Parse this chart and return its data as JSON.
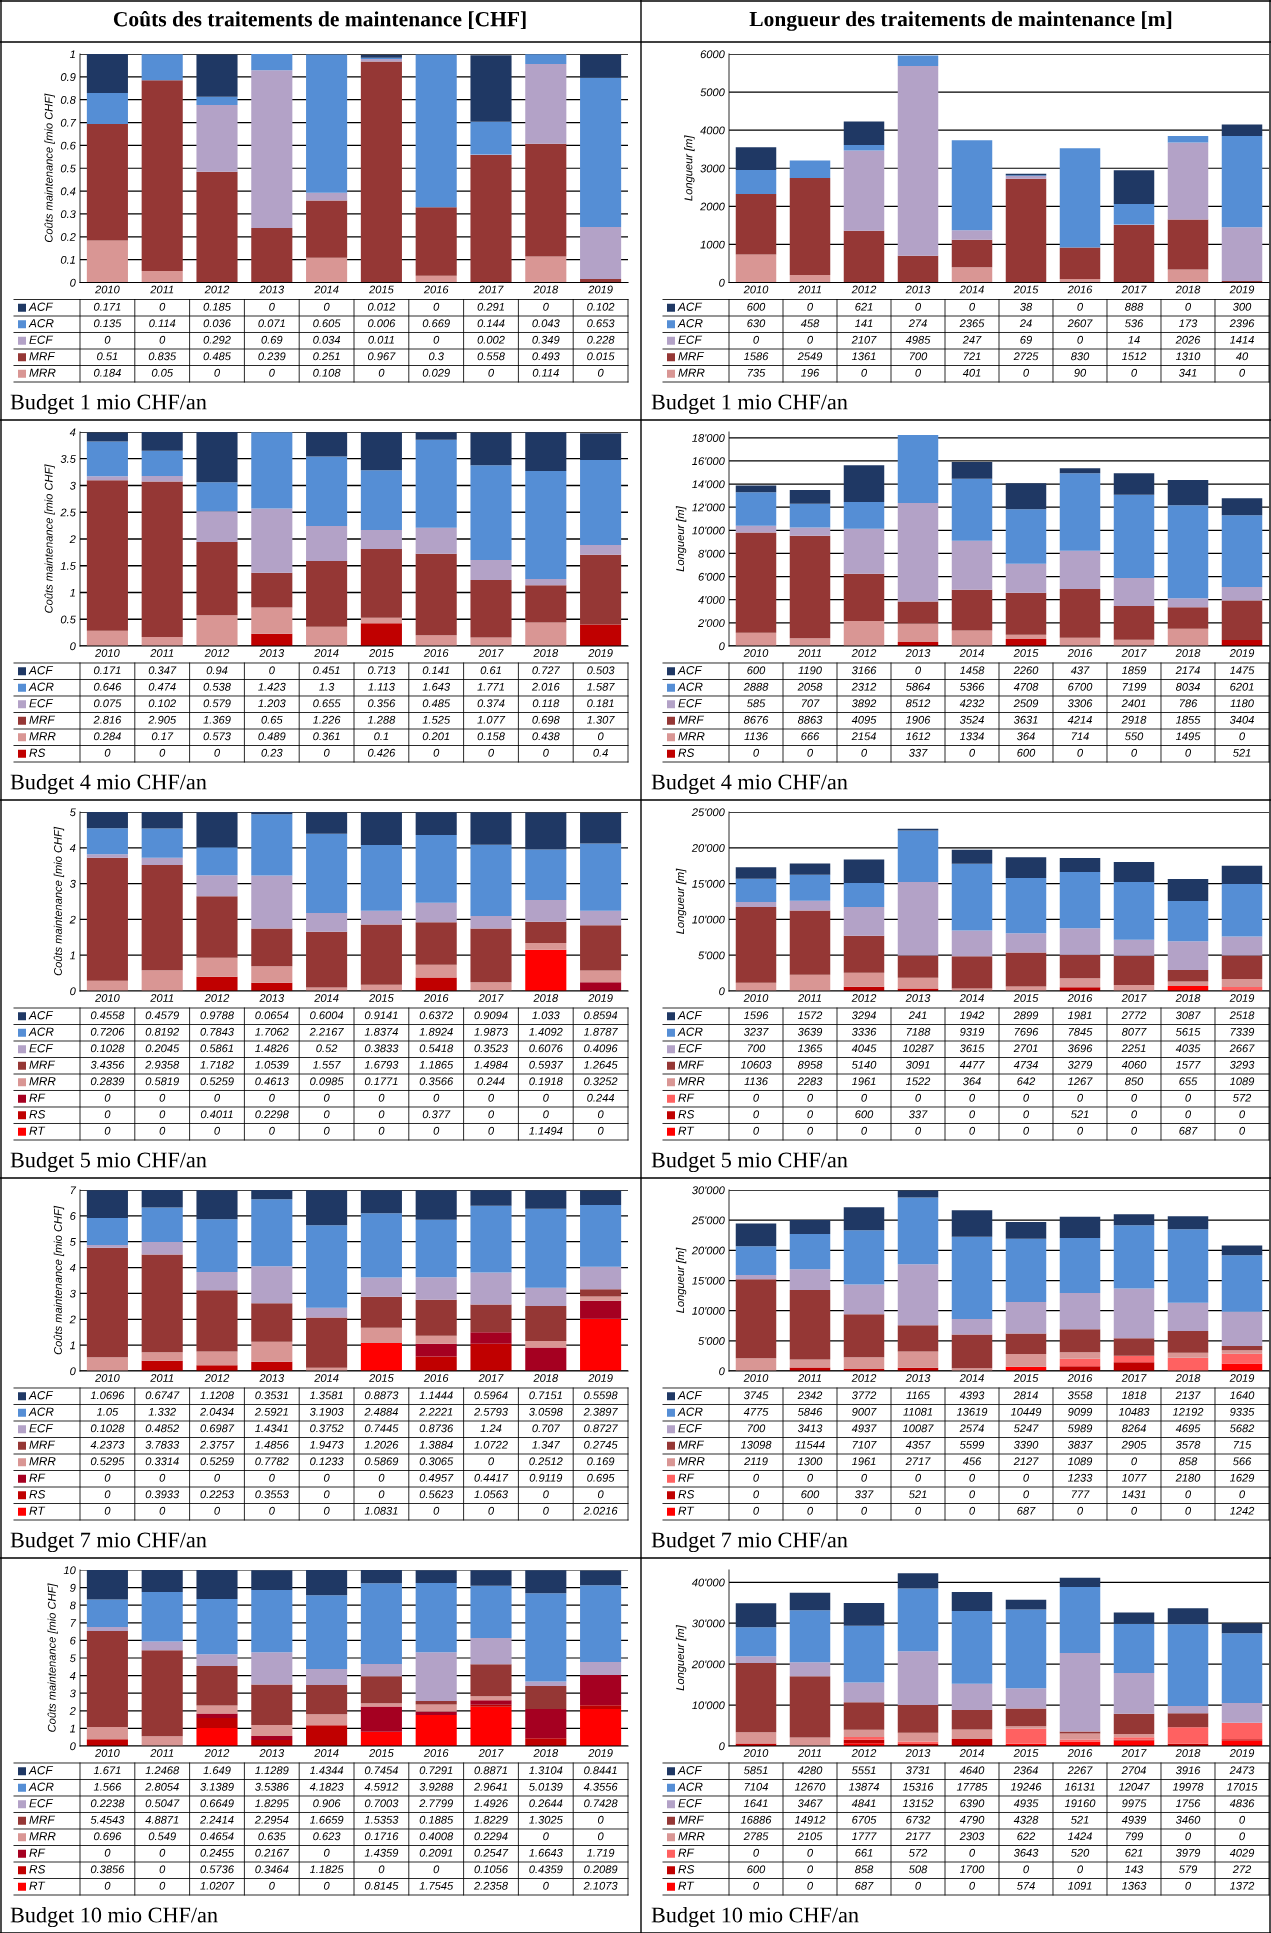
{
  "chart_data": [
    {
      "type": "bar",
      "stacked": true,
      "title": "Coûts des traitements de maintenance [CHF]",
      "ylabel": "Coûts maintenance [mio CHF]",
      "categories": [
        "2010",
        "2011",
        "2012",
        "2013",
        "2014",
        "2015",
        "2016",
        "2017",
        "2018",
        "2019"
      ],
      "ylim": [
        0,
        1
      ],
      "yticks": [
        0,
        0.1,
        0.2,
        0.3,
        0.4,
        0.5,
        0.6,
        0.7,
        0.8,
        0.9,
        1
      ],
      "grid": "y",
      "legend": "bottom",
      "data_labels": true,
      "annotations": [
        "Budget 1 mio CHF/an"
      ],
      "series": [
        {
          "name": "MRR",
          "color": "#d99694",
          "values": [
            0.184,
            0.05,
            0,
            0,
            0.108,
            0,
            0.029,
            0,
            0.114,
            0
          ]
        },
        {
          "name": "MRF",
          "color": "#953735",
          "values": [
            0.51,
            0.835,
            0.485,
            0.239,
            0.251,
            0.967,
            0.3,
            0.558,
            0.493,
            0.015
          ]
        },
        {
          "name": "ECF",
          "color": "#b3a2c7",
          "values": [
            0,
            0,
            0.292,
            0.69,
            0.034,
            0.011,
            0,
            0.002,
            0.349,
            0.228
          ]
        },
        {
          "name": "ACR",
          "color": "#558ed5",
          "values": [
            0.135,
            0.114,
            0.036,
            0.071,
            0.605,
            0.006,
            0.669,
            0.144,
            0.043,
            0.653
          ]
        },
        {
          "name": "ACF",
          "color": "#1f3864",
          "values": [
            0.171,
            0,
            0.185,
            0,
            0,
            0.012,
            0,
            0.291,
            0,
            0.102
          ]
        }
      ]
    },
    {
      "type": "bar",
      "stacked": true,
      "title": "Longueur des traitements de maintenance [m]",
      "ylabel": "Longueur [m]",
      "categories": [
        "2010",
        "2011",
        "2012",
        "2013",
        "2014",
        "2015",
        "2016",
        "2017",
        "2018",
        "2019"
      ],
      "ylim": [
        0,
        6000
      ],
      "yticks": [
        0,
        1000,
        2000,
        3000,
        4000,
        5000,
        6000
      ],
      "grid": "y",
      "legend": "bottom",
      "data_labels": true,
      "annotations": [
        "Budget 1 mio CHF/an"
      ],
      "series": [
        {
          "name": "MRR",
          "color": "#d99694",
          "values": [
            735,
            196,
            0,
            0,
            401,
            0,
            90,
            0,
            341,
            0
          ]
        },
        {
          "name": "MRF",
          "color": "#953735",
          "values": [
            1586,
            2549,
            1361,
            700,
            721,
            2725,
            830,
            1512,
            1310,
            40
          ]
        },
        {
          "name": "ECF",
          "color": "#b3a2c7",
          "values": [
            0,
            0,
            2107,
            4985,
            247,
            69,
            0,
            14,
            2026,
            1414
          ]
        },
        {
          "name": "ACR",
          "color": "#558ed5",
          "values": [
            630,
            458,
            141,
            274,
            2365,
            24,
            2607,
            536,
            173,
            2396
          ]
        },
        {
          "name": "ACF",
          "color": "#1f3864",
          "values": [
            600,
            0,
            621,
            0,
            0,
            38,
            0,
            888,
            0,
            300
          ]
        }
      ]
    },
    {
      "type": "bar",
      "stacked": true,
      "ylabel": "Coûts maintenance [mio CHF]",
      "categories": [
        "2010",
        "2011",
        "2012",
        "2013",
        "2014",
        "2015",
        "2016",
        "2017",
        "2018",
        "2019"
      ],
      "ylim": [
        0,
        4
      ],
      "yticks": [
        0,
        0.5,
        1,
        1.5,
        2,
        2.5,
        3,
        3.5,
        4
      ],
      "grid": "y",
      "legend": "bottom",
      "data_labels": true,
      "annotations": [
        "Budget 4 mio CHF/an"
      ],
      "series": [
        {
          "name": "RS",
          "color": "#c00000",
          "values": [
            0,
            0,
            0,
            0.23,
            0,
            0.426,
            0,
            0,
            0,
            0.4
          ]
        },
        {
          "name": "MRR",
          "color": "#d99694",
          "values": [
            0.284,
            0.17,
            0.573,
            0.489,
            0.361,
            0.1,
            0.201,
            0.158,
            0.438,
            0
          ]
        },
        {
          "name": "MRF",
          "color": "#953735",
          "values": [
            2.816,
            2.905,
            1.369,
            0.65,
            1.226,
            1.288,
            1.525,
            1.077,
            0.698,
            1.307
          ]
        },
        {
          "name": "ECF",
          "color": "#b3a2c7",
          "values": [
            0.075,
            0.102,
            0.579,
            1.203,
            0.655,
            0.356,
            0.485,
            0.374,
            0.118,
            0.181
          ]
        },
        {
          "name": "ACR",
          "color": "#558ed5",
          "values": [
            0.646,
            0.474,
            0.538,
            1.423,
            1.3,
            1.113,
            1.643,
            1.771,
            2.016,
            1.587
          ]
        },
        {
          "name": "ACF",
          "color": "#1f3864",
          "values": [
            0.171,
            0.347,
            0.94,
            0,
            0.451,
            0.713,
            0.141,
            0.61,
            0.727,
            0.503
          ]
        }
      ]
    },
    {
      "type": "bar",
      "stacked": true,
      "ylabel": "Longueur [m]",
      "categories": [
        "2010",
        "2011",
        "2012",
        "2013",
        "2014",
        "2015",
        "2016",
        "2017",
        "2018",
        "2019"
      ],
      "ylim": [
        0,
        18500
      ],
      "yticks": [
        0,
        {
          "value": 2000,
          "label": "2'000"
        },
        {
          "value": 4000,
          "label": "4'000"
        },
        {
          "value": 6000,
          "label": "6'000"
        },
        {
          "value": 8000,
          "label": "8'000"
        },
        {
          "value": 10000,
          "label": "10'000"
        },
        {
          "value": 12000,
          "label": "12'000"
        },
        {
          "value": 14000,
          "label": "14'000"
        },
        {
          "value": 16000,
          "label": "16'000"
        },
        {
          "value": 18000,
          "label": "18'000"
        }
      ],
      "grid": "y",
      "legend": "bottom",
      "data_labels": true,
      "annotations": [
        "Budget 4 mio CHF/an"
      ],
      "series": [
        {
          "name": "RS",
          "color": "#c00000",
          "values": [
            0,
            0,
            0,
            337,
            0,
            600,
            0,
            0,
            0,
            521
          ]
        },
        {
          "name": "MRR",
          "color": "#d99694",
          "values": [
            1136,
            666,
            2154,
            1612,
            1334,
            364,
            714,
            550,
            1495,
            0
          ]
        },
        {
          "name": "MRF",
          "color": "#953735",
          "values": [
            8676,
            8863,
            4095,
            1906,
            3524,
            3631,
            4214,
            2918,
            1855,
            3404
          ]
        },
        {
          "name": "ECF",
          "color": "#b3a2c7",
          "values": [
            585,
            707,
            3892,
            8512,
            4232,
            2509,
            3306,
            2401,
            786,
            1180
          ]
        },
        {
          "name": "ACR",
          "color": "#558ed5",
          "values": [
            2888,
            2058,
            2312,
            5864,
            5366,
            4708,
            6700,
            7199,
            8034,
            6201
          ]
        },
        {
          "name": "ACF",
          "color": "#1f3864",
          "values": [
            600,
            1190,
            3166,
            0,
            1458,
            2260,
            437,
            1859,
            2174,
            1475
          ]
        }
      ]
    },
    {
      "type": "bar",
      "stacked": true,
      "ylabel": "Coûts maintenance [mio CHF]",
      "categories": [
        "2010",
        "2011",
        "2012",
        "2013",
        "2014",
        "2015",
        "2016",
        "2017",
        "2018",
        "2019"
      ],
      "ylim": [
        0,
        5
      ],
      "yticks": [
        0,
        1,
        2,
        3,
        4,
        5
      ],
      "grid": "y",
      "legend": "bottom",
      "data_labels": true,
      "annotations": [
        "Budget 5 mio CHF/an"
      ],
      "series": [
        {
          "name": "RT",
          "color": "#ff0000",
          "values": [
            0,
            0,
            0,
            0,
            0,
            0,
            0,
            0,
            1.1494,
            0
          ]
        },
        {
          "name": "RS",
          "color": "#c00000",
          "values": [
            0,
            0,
            0.4011,
            0.2298,
            0,
            0,
            0.377,
            0,
            0,
            0
          ]
        },
        {
          "name": "RF",
          "color": "#a50021",
          "values": [
            0,
            0,
            0,
            0,
            0,
            0,
            0,
            0,
            0,
            0.244
          ]
        },
        {
          "name": "MRR",
          "color": "#d99694",
          "values": [
            0.2839,
            0.5819,
            0.5259,
            0.4613,
            0.0985,
            0.1771,
            0.3566,
            0.244,
            0.1918,
            0.3252
          ]
        },
        {
          "name": "MRF",
          "color": "#953735",
          "values": [
            3.4356,
            2.9358,
            1.7182,
            1.0539,
            1.557,
            1.6793,
            1.1865,
            1.4984,
            0.5937,
            1.2645
          ]
        },
        {
          "name": "ECF",
          "color": "#b3a2c7",
          "values": [
            0.1028,
            0.2045,
            0.5861,
            1.4826,
            0.52,
            0.3833,
            0.5418,
            0.3523,
            0.6076,
            0.4096
          ]
        },
        {
          "name": "ACR",
          "color": "#558ed5",
          "values": [
            0.7206,
            0.8192,
            0.7843,
            1.7062,
            2.2167,
            1.8374,
            1.8924,
            1.9873,
            1.4092,
            1.8787
          ]
        },
        {
          "name": "ACF",
          "color": "#1f3864",
          "values": [
            0.4558,
            0.4579,
            0.9788,
            0.0654,
            0.6004,
            0.9141,
            0.6372,
            0.9094,
            1.033,
            0.8594
          ]
        }
      ]
    },
    {
      "type": "bar",
      "stacked": true,
      "ylabel": "Longueur [m]",
      "categories": [
        "2010",
        "2011",
        "2012",
        "2013",
        "2014",
        "2015",
        "2016",
        "2017",
        "2018",
        "2019"
      ],
      "ylim": [
        0,
        25000
      ],
      "yticks": [
        0,
        {
          "value": 5000,
          "label": "5'000"
        },
        {
          "value": 10000,
          "label": "10'000"
        },
        {
          "value": 15000,
          "label": "15'000"
        },
        {
          "value": 20000,
          "label": "20'000"
        },
        {
          "value": 25000,
          "label": "25'000"
        }
      ],
      "grid": "y",
      "legend": "bottom",
      "data_labels": true,
      "annotations": [
        "Budget 5 mio CHF/an"
      ],
      "series": [
        {
          "name": "RT",
          "color": "#ff0000",
          "values": [
            0,
            0,
            0,
            0,
            0,
            0,
            0,
            0,
            687,
            0
          ]
        },
        {
          "name": "RS",
          "color": "#c00000",
          "values": [
            0,
            0,
            600,
            337,
            0,
            0,
            521,
            0,
            0,
            0
          ]
        },
        {
          "name": "RF",
          "color": "#ff6161",
          "values": [
            0,
            0,
            0,
            0,
            0,
            0,
            0,
            0,
            0,
            572
          ]
        },
        {
          "name": "MRR",
          "color": "#d99694",
          "values": [
            1136,
            2283,
            1961,
            1522,
            364,
            642,
            1267,
            850,
            655,
            1089
          ]
        },
        {
          "name": "MRF",
          "color": "#953735",
          "values": [
            10603,
            8958,
            5140,
            3091,
            4477,
            4734,
            3279,
            4060,
            1577,
            3293
          ]
        },
        {
          "name": "ECF",
          "color": "#b3a2c7",
          "values": [
            700,
            1365,
            4045,
            10287,
            3615,
            2701,
            3696,
            2251,
            4035,
            2667
          ]
        },
        {
          "name": "ACR",
          "color": "#558ed5",
          "values": [
            3237,
            3639,
            3336,
            7188,
            9319,
            7696,
            7845,
            8077,
            5615,
            7339
          ]
        },
        {
          "name": "ACF",
          "color": "#1f3864",
          "values": [
            1596,
            1572,
            3294,
            241,
            1942,
            2899,
            1981,
            2772,
            3087,
            2518
          ]
        }
      ]
    },
    {
      "type": "bar",
      "stacked": true,
      "ylabel": "Coûts maintenance [mio CHF]",
      "categories": [
        "2010",
        "2011",
        "2012",
        "2013",
        "2014",
        "2015",
        "2016",
        "2017",
        "2018",
        "2019"
      ],
      "ylim": [
        0,
        7
      ],
      "yticks": [
        0,
        1,
        2,
        3,
        4,
        5,
        6,
        7
      ],
      "grid": "y",
      "legend": "bottom",
      "data_labels": true,
      "annotations": [
        "Budget 7 mio CHF/an"
      ],
      "series": [
        {
          "name": "RT",
          "color": "#ff0000",
          "values": [
            0,
            0,
            0,
            0,
            0,
            1.0831,
            0,
            0,
            0,
            2.0216
          ]
        },
        {
          "name": "RS",
          "color": "#c00000",
          "values": [
            0,
            0.3933,
            0.2253,
            0.3553,
            0,
            0,
            0.5623,
            1.0563,
            0,
            0
          ]
        },
        {
          "name": "RF",
          "color": "#a50021",
          "values": [
            0,
            0,
            0,
            0,
            0,
            0,
            0.4957,
            0.4417,
            0.9119,
            0.695
          ]
        },
        {
          "name": "MRR",
          "color": "#d99694",
          "values": [
            0.5295,
            0.3314,
            0.5259,
            0.7782,
            0.1233,
            0.5869,
            0.3065,
            0,
            0.2512,
            0.169
          ]
        },
        {
          "name": "MRF",
          "color": "#953735",
          "values": [
            4.2373,
            3.7833,
            2.3757,
            1.4856,
            1.9473,
            1.2026,
            1.3884,
            1.0722,
            1.347,
            0.2745
          ]
        },
        {
          "name": "ECF",
          "color": "#b3a2c7",
          "values": [
            0.1028,
            0.4852,
            0.6987,
            1.4341,
            0.3752,
            0.7445,
            0.8736,
            1.24,
            0.707,
            0.8727
          ]
        },
        {
          "name": "ACR",
          "color": "#558ed5",
          "values": [
            1.05,
            1.332,
            2.0434,
            2.5921,
            3.1903,
            2.4884,
            2.2221,
            2.5793,
            3.0598,
            2.3897
          ]
        },
        {
          "name": "ACF",
          "color": "#1f3864",
          "values": [
            1.0696,
            0.6747,
            1.1208,
            0.3531,
            1.3581,
            0.8873,
            1.1444,
            0.5964,
            0.7151,
            0.5598
          ]
        }
      ]
    },
    {
      "type": "bar",
      "stacked": true,
      "ylabel": "Longueur [m]",
      "categories": [
        "2010",
        "2011",
        "2012",
        "2013",
        "2014",
        "2015",
        "2016",
        "2017",
        "2018",
        "2019"
      ],
      "ylim": [
        0,
        30000
      ],
      "yticks": [
        0,
        {
          "value": 5000,
          "label": "5'000"
        },
        {
          "value": 10000,
          "label": "10'000"
        },
        {
          "value": 15000,
          "label": "15'000"
        },
        {
          "value": 20000,
          "label": "20'000"
        },
        {
          "value": 25000,
          "label": "25'000"
        },
        {
          "value": 30000,
          "label": "30'000"
        }
      ],
      "grid": "y",
      "legend": "bottom",
      "data_labels": true,
      "annotations": [
        "Budget 7 mio CHF/an"
      ],
      "series": [
        {
          "name": "RT",
          "color": "#ff0000",
          "values": [
            0,
            0,
            0,
            0,
            0,
            687,
            0,
            0,
            0,
            1242
          ]
        },
        {
          "name": "RS",
          "color": "#c00000",
          "values": [
            0,
            600,
            337,
            521,
            0,
            0,
            777,
            1431,
            0,
            0
          ]
        },
        {
          "name": "RF",
          "color": "#ff6161",
          "values": [
            0,
            0,
            0,
            0,
            0,
            0,
            1233,
            1077,
            2180,
            1629
          ]
        },
        {
          "name": "MRR",
          "color": "#d99694",
          "values": [
            2119,
            1300,
            1961,
            2717,
            456,
            2127,
            1089,
            0,
            858,
            566
          ]
        },
        {
          "name": "MRF",
          "color": "#953735",
          "values": [
            13098,
            11544,
            7107,
            4357,
            5599,
            3390,
            3837,
            2905,
            3578,
            715
          ]
        },
        {
          "name": "ECF",
          "color": "#b3a2c7",
          "values": [
            700,
            3413,
            4937,
            10087,
            2574,
            5247,
            5989,
            8264,
            4695,
            5682
          ]
        },
        {
          "name": "ACR",
          "color": "#558ed5",
          "values": [
            4775,
            5846,
            9007,
            11081,
            13619,
            10449,
            9099,
            10483,
            12192,
            9335
          ]
        },
        {
          "name": "ACF",
          "color": "#1f3864",
          "values": [
            3745,
            2342,
            3772,
            1165,
            4393,
            2814,
            3558,
            1818,
            2137,
            1640
          ]
        }
      ]
    },
    {
      "type": "bar",
      "stacked": true,
      "ylabel": "Coûts maintenance [mio CHF]",
      "categories": [
        "2010",
        "2011",
        "2012",
        "2013",
        "2014",
        "2015",
        "2016",
        "2017",
        "2018",
        "2019"
      ],
      "ylim": [
        0,
        10
      ],
      "yticks": [
        0,
        1,
        2,
        3,
        4,
        5,
        6,
        7,
        8,
        9,
        10
      ],
      "grid": "y",
      "legend": "bottom",
      "data_labels": true,
      "annotations": [
        "Budget 10 mio CHF/an"
      ],
      "series": [
        {
          "name": "RT",
          "color": "#ff0000",
          "values": [
            0,
            0,
            1.0207,
            0,
            0,
            0.8145,
            1.7545,
            2.2358,
            0,
            2.1073
          ]
        },
        {
          "name": "RS",
          "color": "#c00000",
          "values": [
            0.3856,
            0,
            0.5736,
            0.3464,
            1.1825,
            0,
            0,
            0.1056,
            0.4359,
            0.2089
          ]
        },
        {
          "name": "RF",
          "color": "#a50021",
          "values": [
            0,
            0,
            0.2455,
            0.2167,
            0,
            1.4359,
            0.2091,
            0.2547,
            1.6643,
            1.719
          ]
        },
        {
          "name": "MRR",
          "color": "#d99694",
          "values": [
            0.696,
            0.549,
            0.4654,
            0.635,
            0.623,
            0.1716,
            0.4008,
            0.2294,
            0,
            0
          ]
        },
        {
          "name": "MRF",
          "color": "#953735",
          "values": [
            5.4543,
            4.8871,
            2.2414,
            2.2954,
            1.6659,
            1.5353,
            0.1885,
            1.8229,
            1.3025,
            0
          ]
        },
        {
          "name": "ECF",
          "color": "#b3a2c7",
          "values": [
            0.2238,
            0.5047,
            0.6649,
            1.8295,
            0.906,
            0.7003,
            2.7799,
            1.4926,
            0.2644,
            0.7428
          ]
        },
        {
          "name": "ACR",
          "color": "#558ed5",
          "values": [
            1.566,
            2.8054,
            3.1389,
            3.5386,
            4.1823,
            4.5912,
            3.9288,
            2.9641,
            5.0139,
            4.3556
          ]
        },
        {
          "name": "ACF",
          "color": "#1f3864",
          "values": [
            1.671,
            1.2468,
            1.649,
            1.1289,
            1.4344,
            0.7454,
            0.7291,
            0.8871,
            1.3104,
            0.8441
          ]
        }
      ]
    },
    {
      "type": "bar",
      "stacked": true,
      "ylabel": "Longueur [m]",
      "categories": [
        "2010",
        "2011",
        "2012",
        "2013",
        "2014",
        "2015",
        "2016",
        "2017",
        "2018",
        "2019"
      ],
      "ylim": [
        0,
        43000
      ],
      "yticks": [
        0,
        {
          "value": 10000,
          "label": "10'000"
        },
        {
          "value": 20000,
          "label": "20'000"
        },
        {
          "value": 30000,
          "label": "30'000"
        },
        {
          "value": 40000,
          "label": "40'000"
        }
      ],
      "grid": "y",
      "legend": "bottom",
      "data_labels": true,
      "annotations": [
        "Budget 10 mio CHF/an"
      ],
      "series": [
        {
          "name": "RT",
          "color": "#ff0000",
          "values": [
            0,
            0,
            687,
            0,
            0,
            574,
            1091,
            1363,
            0,
            1372
          ]
        },
        {
          "name": "RS",
          "color": "#c00000",
          "values": [
            600,
            0,
            858,
            508,
            1700,
            0,
            0,
            143,
            579,
            272
          ]
        },
        {
          "name": "RF",
          "color": "#ff6161",
          "values": [
            0,
            0,
            661,
            572,
            0,
            3643,
            520,
            621,
            3979,
            4029
          ]
        },
        {
          "name": "MRR",
          "color": "#d99694",
          "values": [
            2785,
            2105,
            1777,
            2177,
            2303,
            622,
            1424,
            799,
            0,
            0
          ]
        },
        {
          "name": "MRF",
          "color": "#953735",
          "values": [
            16886,
            14912,
            6705,
            6732,
            4790,
            4328,
            521,
            4939,
            3460,
            0
          ]
        },
        {
          "name": "ECF",
          "color": "#b3a2c7",
          "values": [
            1641,
            3467,
            4841,
            13152,
            6390,
            4935,
            19160,
            9975,
            1756,
            4836
          ]
        },
        {
          "name": "ACR",
          "color": "#558ed5",
          "values": [
            7104,
            12670,
            13874,
            15316,
            17785,
            19246,
            16131,
            12047,
            19978,
            17015
          ]
        },
        {
          "name": "ACF",
          "color": "#1f3864",
          "values": [
            5851,
            4280,
            5551,
            3731,
            4640,
            2364,
            2267,
            2704,
            3916,
            2473
          ]
        }
      ]
    }
  ]
}
